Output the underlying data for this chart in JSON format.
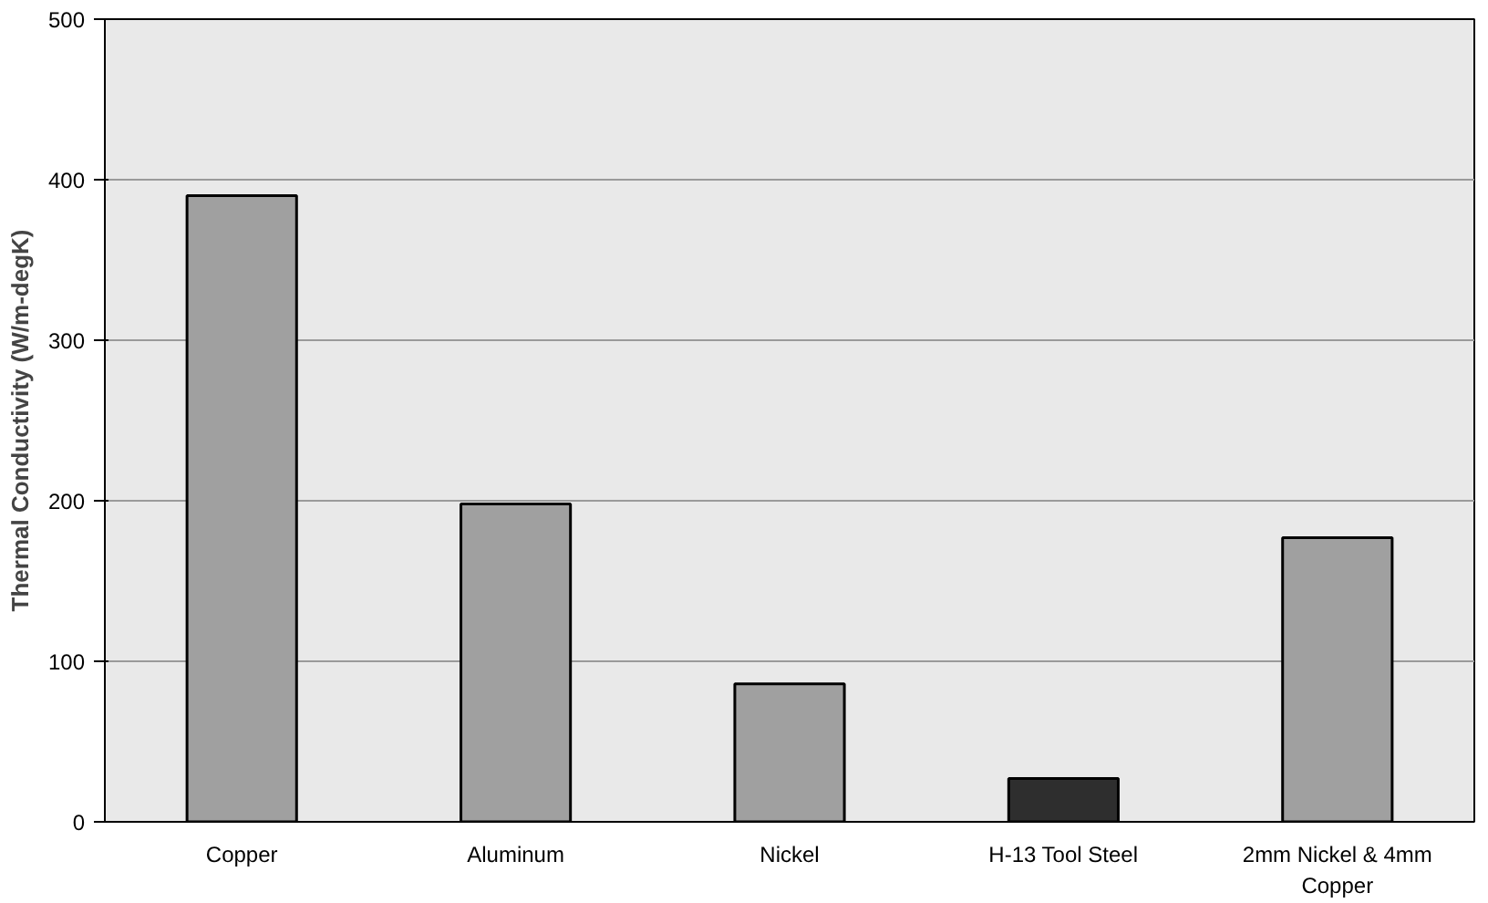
{
  "chart_data": {
    "type": "bar",
    "ylabel": "Thermal Conductivity (W/m-degK)",
    "categories": [
      "Copper",
      "Aluminum",
      "Nickel",
      "H-13 Tool Steel",
      "2mm Nickel & 4mm Copper"
    ],
    "values": [
      390,
      198,
      86,
      27,
      177
    ],
    "colors": [
      "#a0a0a0",
      "#a0a0a0",
      "#a0a0a0",
      "#2e2e2e",
      "#a0a0a0"
    ],
    "ylim": [
      0,
      500
    ],
    "yticks": [
      0,
      100,
      200,
      300,
      400,
      500
    ],
    "grid": "y"
  }
}
